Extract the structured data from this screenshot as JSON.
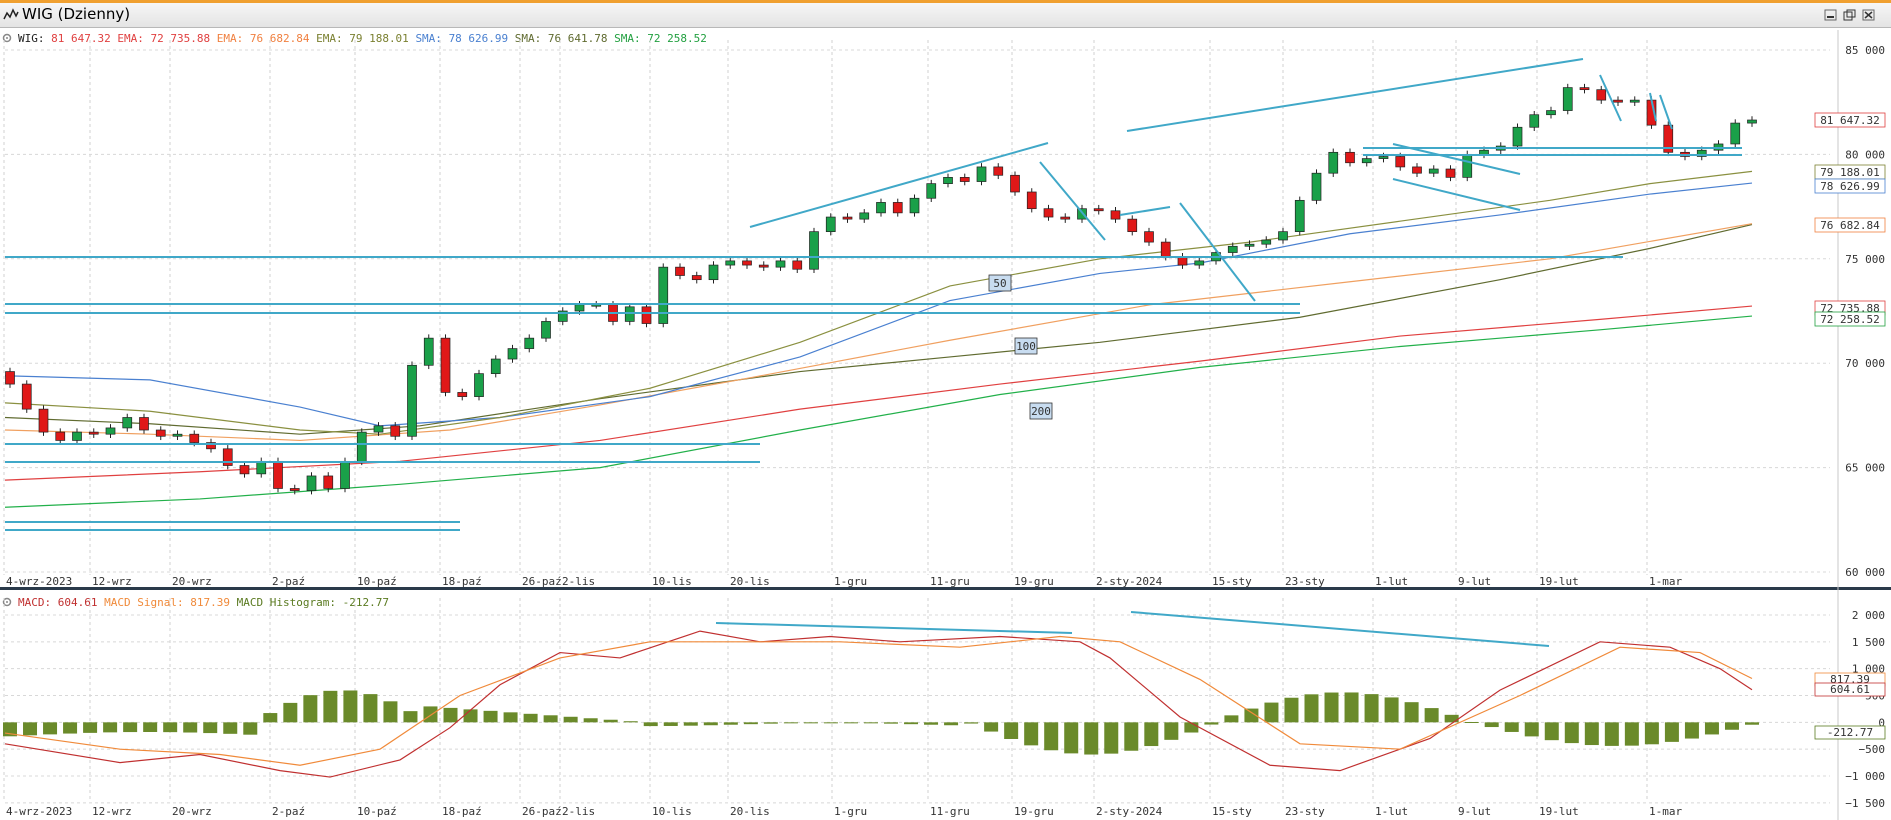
{
  "window": {
    "title": "WIG (Dzienny)"
  },
  "colors": {
    "up_candle": "#1aa049",
    "down_candle": "#e01818",
    "ema_short": "#e04040",
    "ema_mid": "#f0a060",
    "ema_long": "#8a9040",
    "sma_50": "#4a80d0",
    "sma_100": "#606b30",
    "sma_200": "#22b04a",
    "trendline": "#40a8c8",
    "macd": "#c03030",
    "signal": "#f08a3a",
    "histogram": "#6a8a2a"
  },
  "price_legend": {
    "symbol": "WIG:",
    "last": "81 647.32",
    "ema1_label": "EMA:",
    "ema1_value": "72 735.88",
    "ema2_label": "EMA:",
    "ema2_value": "76 682.84",
    "ema3_label": "EMA:",
    "ema3_value": "79 188.01",
    "sma1_label": "SMA:",
    "sma1_value": "78 626.99",
    "sma2_label": "SMA:",
    "sma2_value": "76 641.78",
    "sma3_label": "SMA:",
    "sma3_value": "72 258.52"
  },
  "macd_legend": {
    "macd_label": "MACD:",
    "macd_value": "604.61",
    "signal_label": "MACD Signal:",
    "signal_value": "817.39",
    "hist_label": "MACD Histogram:",
    "hist_value": "-212.77"
  },
  "ma_period_tags": [
    "50",
    "100",
    "200"
  ],
  "chart_data": [
    {
      "type": "candlestick",
      "title": "WIG (Dzienny)",
      "ylim": [
        60000,
        85000
      ],
      "ytick_labels": [
        "85 000",
        "80 000",
        "75 000",
        "70 000",
        "65 000",
        "60 000"
      ],
      "xtick_labels": [
        "4-wrz-2023",
        "12-wrz",
        "20-wrz",
        "2-paź",
        "10-paź",
        "18-paź",
        "26-paź",
        "2-lis",
        "10-lis",
        "20-lis",
        "1-gru",
        "11-gru",
        "19-gru",
        "2-sty-2024",
        "15-sty",
        "23-sty",
        "1-lut",
        "9-lut",
        "19-lut",
        "1-mar"
      ],
      "grid": true,
      "price_labels": [
        "81 647.32",
        "79 188.01",
        "78 626.99",
        "76 682.84",
        "72 735.88",
        "72 258.52"
      ],
      "close_values": [
        69000,
        67800,
        66700,
        66300,
        66700,
        66600,
        66900,
        67400,
        66800,
        66500,
        66600,
        66200,
        65900,
        65100,
        64700,
        65300,
        64000,
        63900,
        64600,
        64000,
        65300,
        66700,
        67000,
        66500,
        69900,
        71200,
        68600,
        68400,
        69500,
        70200,
        70700,
        71200,
        72000,
        72500,
        72800,
        72800,
        72000,
        72700,
        71900,
        74600,
        74200,
        74000,
        74700,
        74900,
        74700,
        74600,
        74900,
        74500,
        76300,
        77000,
        76900,
        77200,
        77700,
        77200,
        77900,
        78600,
        78900,
        78700,
        79400,
        79000,
        78200,
        77400,
        77000,
        76900,
        77400,
        77300,
        76900,
        76300,
        75800,
        75100,
        74700,
        74900,
        75300,
        75600,
        75700,
        75900,
        76300,
        77800,
        79100,
        80100,
        79600,
        79800,
        79900,
        79400,
        79100,
        79300,
        78900,
        80000,
        80200,
        80400,
        81300,
        81900,
        82100,
        83200,
        83100,
        82600,
        82500,
        82600,
        81400,
        80100,
        79900,
        80200,
        80500,
        81500,
        81647.32
      ],
      "series": [
        {
          "name": "EMA",
          "last": 72735.88
        },
        {
          "name": "EMA",
          "last": 76682.84
        },
        {
          "name": "EMA",
          "last": 79188.01
        },
        {
          "name": "SMA",
          "last": 78626.99
        },
        {
          "name": "SMA",
          "last": 76641.78
        },
        {
          "name": "SMA",
          "last": 72258.52
        }
      ]
    },
    {
      "type": "line",
      "title": "MACD",
      "ylim": [
        -1000,
        2000
      ],
      "ytick_labels": [
        "2 000",
        "1 500",
        "1 000",
        "500",
        "0",
        "−500",
        "−1 000",
        "−1 500"
      ],
      "xtick_labels": [
        "4-wrz-2023",
        "12-wrz",
        "20-wrz",
        "2-paź",
        "10-paź",
        "18-paź",
        "26-paź",
        "2-lis",
        "10-lis",
        "20-lis",
        "1-gru",
        "11-gru",
        "19-gru",
        "2-sty-2024",
        "15-sty",
        "23-sty",
        "1-lut",
        "9-lut",
        "19-lut",
        "1-mar"
      ],
      "value_labels": [
        "817.39",
        "604.61",
        "-212.77"
      ],
      "series": [
        {
          "name": "MACD",
          "last": 604.61
        },
        {
          "name": "MACD Signal",
          "last": 817.39
        },
        {
          "name": "MACD Histogram",
          "last": -212.77
        }
      ]
    }
  ]
}
